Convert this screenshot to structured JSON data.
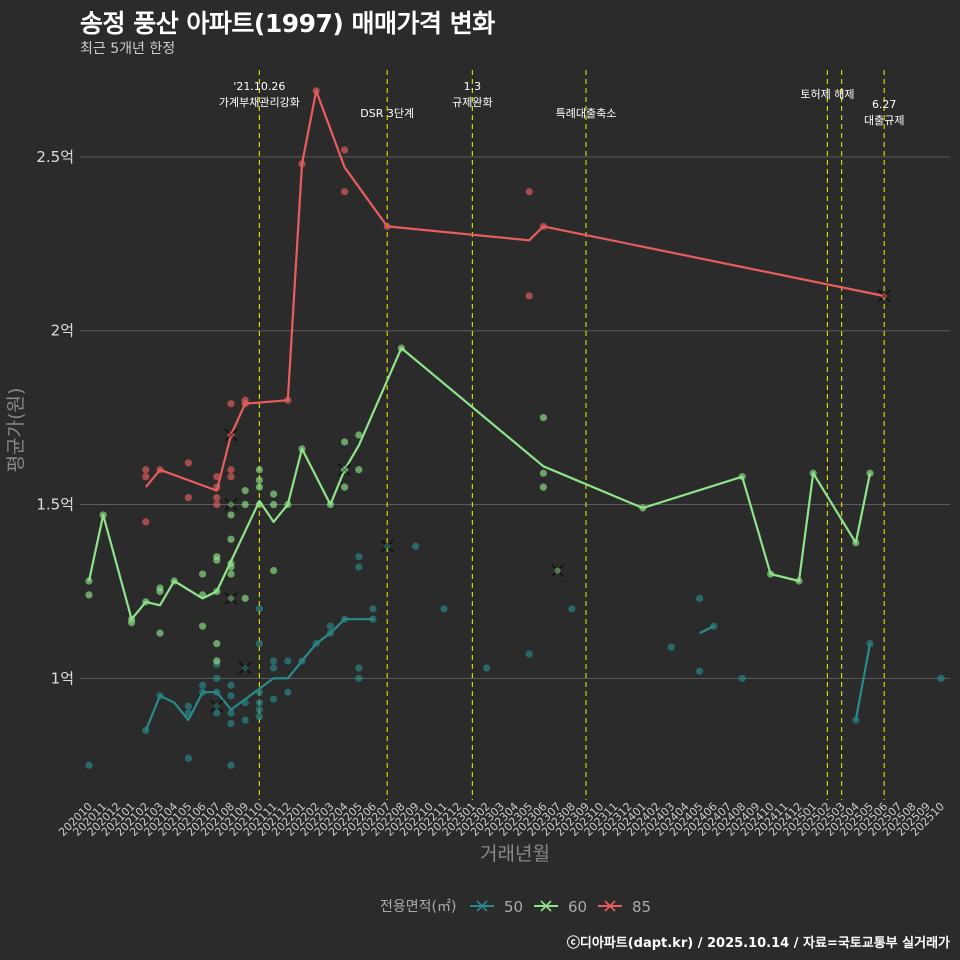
{
  "title": "송정 풍산 아파트(1997) 매매가격 변화",
  "subtitle": "최근 5개년 한정",
  "caption": "ⓒ디아파트(dapt.kr) / 2025.10.14 / 자료=국토교통부 실거래가",
  "chart_data": {
    "type": "line",
    "xlabel": "거래년월",
    "ylabel": "평균가(원)",
    "ylim": [
      0.65,
      2.75
    ],
    "yticks": [
      1,
      1.5,
      2,
      2.5
    ],
    "ytick_labels": [
      "1억",
      "1.5억",
      "2억",
      "2.5억"
    ],
    "months": [
      "202010",
      "202011",
      "202012",
      "202101",
      "202102",
      "202103",
      "202104",
      "202105",
      "202106",
      "202107",
      "202108",
      "202109",
      "202110",
      "202111",
      "202112",
      "202201",
      "202202",
      "202203",
      "202204",
      "202205",
      "202206",
      "202207",
      "202208",
      "202209",
      "202210",
      "202211",
      "202212",
      "202301",
      "202302",
      "202303",
      "202304",
      "202305",
      "202306",
      "202307",
      "202308",
      "202309",
      "202310",
      "202311",
      "202312",
      "202401",
      "202402",
      "202403",
      "202404",
      "202405",
      "202406",
      "202407",
      "202408",
      "202409",
      "202410",
      "202411",
      "202412",
      "202501",
      "202502",
      "202503",
      "202504",
      "202505",
      "202506",
      "202507",
      "202508",
      "202509",
      "202510"
    ],
    "legend": {
      "title": "전용면적(㎡)",
      "entries": [
        "50",
        "60",
        "85"
      ],
      "colors": [
        "#2a8a8a",
        "#8fe38a",
        "#e85d5d"
      ]
    },
    "annotations": [
      {
        "month": "202110",
        "label_lines": [
          "'21.10.26",
          "가계부채관리강화"
        ]
      },
      {
        "month": "202207",
        "label_lines": [
          "DSR 3단계"
        ]
      },
      {
        "month": "202301",
        "label_lines": [
          "1.3",
          "규제완화"
        ]
      },
      {
        "month": "202309",
        "label_lines": [
          "특례대출축소"
        ]
      },
      {
        "month": "202502",
        "label_lines": [
          "토허제 해제"
        ]
      },
      {
        "month": "202503",
        "label_lines": []
      },
      {
        "month": "202506",
        "label_lines": [
          "6.27",
          "대출규제"
        ]
      }
    ],
    "series": [
      {
        "name": "50",
        "color": "#2a8a8a",
        "lines": [
          [
            [
              "202102",
              0.85
            ],
            [
              "202103",
              0.95
            ],
            [
              "202104",
              0.93
            ],
            [
              "202105",
              0.88
            ],
            [
              "202106",
              0.96
            ],
            [
              "202107",
              0.96
            ],
            [
              "202108",
              0.91
            ],
            [
              "202109",
              0.94
            ],
            [
              "202110",
              0.97
            ],
            [
              "202111",
              1.0
            ],
            [
              "202112",
              1.0
            ],
            [
              "202201",
              1.05
            ],
            [
              "202202",
              1.1
            ],
            [
              "202203",
              1.13
            ],
            [
              "202204",
              1.17
            ],
            [
              "202205",
              1.17
            ],
            [
              "202206",
              1.17
            ]
          ],
          [
            [
              "202405",
              1.13
            ],
            [
              "202406",
              1.15
            ]
          ],
          [
            [
              "202504",
              0.88
            ],
            [
              "202505",
              1.1
            ]
          ]
        ],
        "points": [
          [
            "202010",
            0.75
          ],
          [
            "202102",
            0.85
          ],
          [
            "202103",
            0.95
          ],
          [
            "202105",
            0.77
          ],
          [
            "202105",
            0.9
          ],
          [
            "202105",
            0.92
          ],
          [
            "202106",
            0.98
          ],
          [
            "202106",
            0.96
          ],
          [
            "202107",
            0.9
          ],
          [
            "202107",
            0.96
          ],
          [
            "202107",
            1.0
          ],
          [
            "202107",
            1.04
          ],
          [
            "202108",
            0.98
          ],
          [
            "202108",
            0.95
          ],
          [
            "202108",
            0.9
          ],
          [
            "202108",
            0.87
          ],
          [
            "202108",
            0.75
          ],
          [
            "202109",
            0.93
          ],
          [
            "202109",
            0.88
          ],
          [
            "202110",
            0.96
          ],
          [
            "202110",
            0.93
          ],
          [
            "202110",
            0.91
          ],
          [
            "202110",
            0.89
          ],
          [
            "202110",
            1.2
          ],
          [
            "202110",
            1.1
          ],
          [
            "202111",
            1.03
          ],
          [
            "202111",
            1.05
          ],
          [
            "202111",
            0.94
          ],
          [
            "202112",
            1.05
          ],
          [
            "202112",
            0.96
          ],
          [
            "202201",
            1.05
          ],
          [
            "202202",
            1.1
          ],
          [
            "202203",
            1.15
          ],
          [
            "202203",
            1.13
          ],
          [
            "202204",
            1.17
          ],
          [
            "202205",
            1.35
          ],
          [
            "202205",
            1.32
          ],
          [
            "202205",
            1.03
          ],
          [
            "202205",
            1.0
          ],
          [
            "202206",
            1.2
          ],
          [
            "202206",
            1.17
          ],
          [
            "202209",
            1.38
          ],
          [
            "202211",
            1.2
          ],
          [
            "202302",
            1.03
          ],
          [
            "202305",
            1.07
          ],
          [
            "202308",
            1.2
          ],
          [
            "202403",
            1.09
          ],
          [
            "202405",
            1.23
          ],
          [
            "202405",
            1.02
          ],
          [
            "202406",
            1.15
          ],
          [
            "202408",
            1.0
          ],
          [
            "202505",
            1.1
          ],
          [
            "202504",
            0.88
          ],
          [
            "202510",
            1.0
          ]
        ],
        "crosses": [
          [
            "202107",
            0.92
          ],
          [
            "202109",
            1.03
          ],
          [
            "202207",
            1.38
          ]
        ]
      },
      {
        "name": "60",
        "color": "#8fe38a",
        "lines": [
          [
            [
              "202010",
              1.28
            ],
            [
              "202011",
              1.47
            ],
            [
              "202101",
              1.17
            ],
            [
              "202102",
              1.22
            ],
            [
              "202103",
              1.21
            ],
            [
              "202104",
              1.28
            ],
            [
              "202106",
              1.23
            ],
            [
              "202107",
              1.25
            ],
            [
              "202110",
              1.51
            ],
            [
              "202111",
              1.45
            ],
            [
              "202112",
              1.5
            ],
            [
              "202201",
              1.66
            ],
            [
              "202203",
              1.5
            ],
            [
              "202204",
              1.6
            ],
            [
              "202205",
              1.67
            ],
            [
              "202208",
              1.95
            ],
            [
              "202306",
              1.61
            ],
            [
              "202401",
              1.49
            ],
            [
              "202408",
              1.58
            ],
            [
              "202410",
              1.3
            ],
            [
              "202412",
              1.28
            ],
            [
              "202501",
              1.59
            ],
            [
              "202504",
              1.39
            ],
            [
              "202505",
              1.59
            ]
          ]
        ],
        "points": [
          [
            "202010",
            1.28
          ],
          [
            "202010",
            1.24
          ],
          [
            "202011",
            1.47
          ],
          [
            "202101",
            1.17
          ],
          [
            "202101",
            1.16
          ],
          [
            "202102",
            1.22
          ],
          [
            "202103",
            1.26
          ],
          [
            "202103",
            1.25
          ],
          [
            "202103",
            1.13
          ],
          [
            "202104",
            1.28
          ],
          [
            "202106",
            1.3
          ],
          [
            "202106",
            1.24
          ],
          [
            "202106",
            1.15
          ],
          [
            "202107",
            1.35
          ],
          [
            "202107",
            1.34
          ],
          [
            "202107",
            1.25
          ],
          [
            "202107",
            1.1
          ],
          [
            "202107",
            1.05
          ],
          [
            "202108",
            1.47
          ],
          [
            "202108",
            1.4
          ],
          [
            "202108",
            1.33
          ],
          [
            "202108",
            1.32
          ],
          [
            "202108",
            1.3
          ],
          [
            "202109",
            1.54
          ],
          [
            "202109",
            1.5
          ],
          [
            "202109",
            1.23
          ],
          [
            "202110",
            1.6
          ],
          [
            "202110",
            1.57
          ],
          [
            "202110",
            1.55
          ],
          [
            "202110",
            1.5
          ],
          [
            "202111",
            1.53
          ],
          [
            "202111",
            1.5
          ],
          [
            "202111",
            1.31
          ],
          [
            "202112",
            1.5
          ],
          [
            "202201",
            1.66
          ],
          [
            "202203",
            1.5
          ],
          [
            "202204",
            1.68
          ],
          [
            "202204",
            1.6
          ],
          [
            "202204",
            1.55
          ],
          [
            "202205",
            1.7
          ],
          [
            "202205",
            1.6
          ],
          [
            "202208",
            1.95
          ],
          [
            "202306",
            1.75
          ],
          [
            "202306",
            1.59
          ],
          [
            "202306",
            1.55
          ],
          [
            "202401",
            1.49
          ],
          [
            "202408",
            1.58
          ],
          [
            "202410",
            1.3
          ],
          [
            "202412",
            1.28
          ],
          [
            "202501",
            1.59
          ],
          [
            "202504",
            1.39
          ],
          [
            "202505",
            1.59
          ]
        ],
        "crosses": [
          [
            "202108",
            1.5
          ],
          [
            "202108",
            1.23
          ],
          [
            "202204",
            1.6
          ],
          [
            "202307",
            1.31
          ]
        ]
      },
      {
        "name": "85",
        "color": "#e85d5d",
        "lines": [
          [
            [
              "202102",
              1.55
            ],
            [
              "202103",
              1.6
            ],
            [
              "202107",
              1.54
            ],
            [
              "202108",
              1.7
            ],
            [
              "202109",
              1.79
            ],
            [
              "202112",
              1.8
            ],
            [
              "202201",
              2.48
            ],
            [
              "202202",
              2.69
            ],
            [
              "202204",
              2.47
            ],
            [
              "202207",
              2.3
            ],
            [
              "202305",
              2.26
            ],
            [
              "202306",
              2.3
            ],
            [
              "202506",
              2.1
            ]
          ]
        ],
        "points": [
          [
            "202102",
            1.6
          ],
          [
            "202102",
            1.58
          ],
          [
            "202102",
            1.45
          ],
          [
            "202103",
            1.6
          ],
          [
            "202105",
            1.62
          ],
          [
            "202105",
            1.52
          ],
          [
            "202107",
            1.58
          ],
          [
            "202107",
            1.55
          ],
          [
            "202107",
            1.52
          ],
          [
            "202107",
            1.5
          ],
          [
            "202108",
            1.79
          ],
          [
            "202108",
            1.7
          ],
          [
            "202108",
            1.6
          ],
          [
            "202108",
            1.58
          ],
          [
            "202109",
            1.8
          ],
          [
            "202109",
            1.79
          ],
          [
            "202112",
            1.8
          ],
          [
            "202201",
            2.48
          ],
          [
            "202202",
            2.69
          ],
          [
            "202204",
            2.52
          ],
          [
            "202204",
            2.4
          ],
          [
            "202207",
            2.3
          ],
          [
            "202305",
            2.4
          ],
          [
            "202305",
            2.1
          ],
          [
            "202306",
            2.3
          ]
        ],
        "crosses": [
          [
            "202108",
            1.7
          ],
          [
            "202506",
            2.1
          ]
        ]
      }
    ]
  }
}
